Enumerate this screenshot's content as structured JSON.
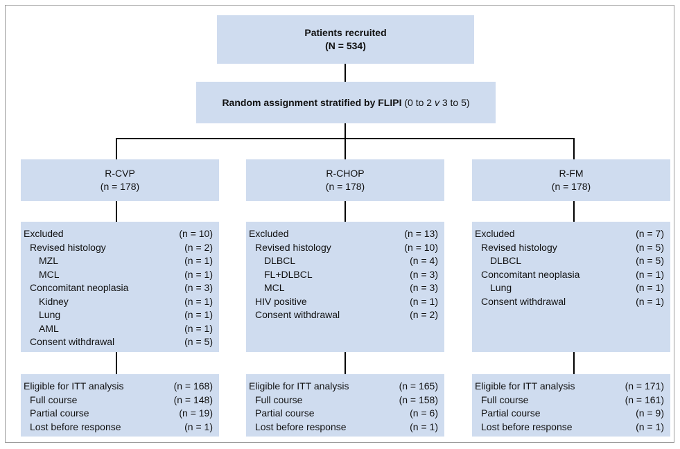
{
  "recruited": {
    "label": "Patients recruited",
    "n": "(N = 534)"
  },
  "randomization": {
    "label": "Random assignment stratified by FLIPI",
    "range_start": "(0 to 2",
    "versus": "v",
    "range_end": "3 to 5)"
  },
  "arms": [
    {
      "name": "R-CVP",
      "n": "(n = 178)",
      "excluded": {
        "label": "Excluded",
        "n": "(n = 10)",
        "items": [
          {
            "label": "Revised histology",
            "n": "(n = 2)",
            "items": [
              {
                "label": "MZL",
                "n": "(n = 1)"
              },
              {
                "label": "MCL",
                "n": "(n = 1)"
              }
            ]
          },
          {
            "label": "Concomitant neoplasia",
            "n": "(n = 3)",
            "items": [
              {
                "label": "Kidney",
                "n": "(n = 1)"
              },
              {
                "label": "Lung",
                "n": "(n = 1)"
              },
              {
                "label": "AML",
                "n": "(n = 1)"
              }
            ]
          },
          {
            "label": "Consent withdrawal",
            "n": "(n = 5)"
          }
        ]
      },
      "eligible": {
        "label": "Eligible for ITT analysis",
        "n": "(n = 168)",
        "items": [
          {
            "label": "Full course",
            "n": "(n = 148)"
          },
          {
            "label": "Partial course",
            "n": "(n = 19)"
          },
          {
            "label": "Lost before response",
            "n": "(n = 1)"
          }
        ]
      }
    },
    {
      "name": "R-CHOP",
      "n": "(n = 178)",
      "excluded": {
        "label": "Excluded",
        "n": "(n = 13)",
        "items": [
          {
            "label": "Revised histology",
            "n": "(n = 10)",
            "items": [
              {
                "label": "DLBCL",
                "n": "(n = 4)"
              },
              {
                "label": "FL+DLBCL",
                "n": "(n = 3)"
              },
              {
                "label": "MCL",
                "n": "(n = 3)"
              }
            ]
          },
          {
            "label": "HIV positive",
            "n": "(n = 1)"
          },
          {
            "label": "Consent withdrawal",
            "n": "(n = 2)"
          }
        ]
      },
      "eligible": {
        "label": "Eligible for ITT analysis",
        "n": "(n = 165)",
        "items": [
          {
            "label": "Full course",
            "n": "(n = 158)"
          },
          {
            "label": "Partial course",
            "n": "(n = 6)"
          },
          {
            "label": "Lost before response",
            "n": "(n = 1)"
          }
        ]
      }
    },
    {
      "name": "R-FM",
      "n": "(n = 178)",
      "excluded": {
        "label": "Excluded",
        "n": "(n = 7)",
        "items": [
          {
            "label": "Revised histology",
            "n": "(n = 5)",
            "items": [
              {
                "label": "DLBCL",
                "n": "(n = 5)"
              }
            ]
          },
          {
            "label": "Concomitant neoplasia",
            "n": "(n = 1)",
            "items": [
              {
                "label": "Lung",
                "n": "(n = 1)"
              }
            ]
          },
          {
            "label": "Consent withdrawal",
            "n": "(n = 1)"
          }
        ]
      },
      "eligible": {
        "label": "Eligible for ITT analysis",
        "n": "(n = 171)",
        "items": [
          {
            "label": "Full course",
            "n": "(n = 161)"
          },
          {
            "label": "Partial course",
            "n": "(n = 9)"
          },
          {
            "label": "Lost before response",
            "n": "(n = 1)"
          }
        ]
      }
    }
  ]
}
